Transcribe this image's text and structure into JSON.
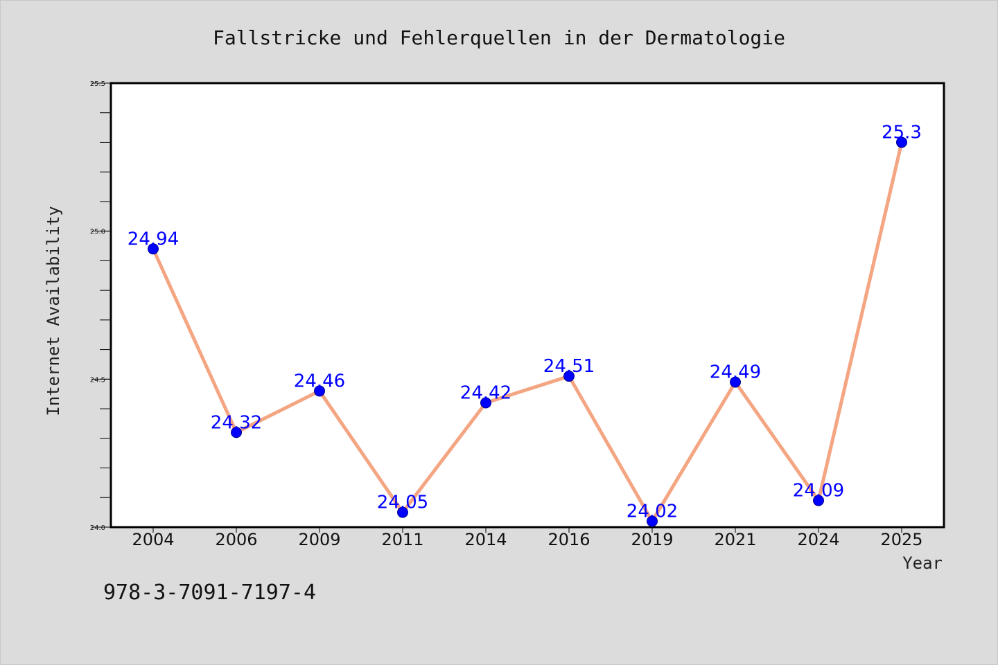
{
  "chart_data": {
    "type": "line",
    "title": "Fallstricke und Fehlerquellen in der Dermatologie",
    "xlabel": "Year",
    "ylabel": "Internet Availability",
    "categories": [
      "2004",
      "2006",
      "2009",
      "2011",
      "2014",
      "2016",
      "2019",
      "2021",
      "2024",
      "2025"
    ],
    "series": [
      {
        "values": [
          24.94,
          24.32,
          24.46,
          24.05,
          24.42,
          24.51,
          24.02,
          24.49,
          24.09,
          25.3
        ],
        "data_labels": [
          "24.94",
          "24.32",
          "24.46",
          "24.05",
          "24.42",
          "24.51",
          "24.02",
          "24.49",
          "24.09",
          "25.3"
        ],
        "line_color": "#f4a582",
        "marker_color": "#0000ff"
      }
    ],
    "ylim": [
      24.0,
      25.5
    ],
    "yticks": [
      24.0,
      24.5,
      25.0,
      25.5
    ],
    "ytick_labels": [
      "24.0",
      "24.5",
      "25.0",
      "25.5"
    ],
    "grid": false,
    "legend": "none"
  },
  "footnote": "978-3-7091-7197-4",
  "colors": {
    "background": "#dcdcdc",
    "plot_background": "#ffffff",
    "line": "#f4a582",
    "marker": "#0000ff",
    "data_label": "#0000ff"
  }
}
